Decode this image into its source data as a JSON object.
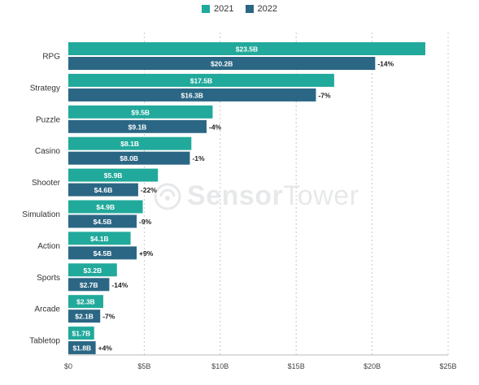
{
  "legend": {
    "items": [
      {
        "label": "2021",
        "color": "#21A99B"
      },
      {
        "label": "2022",
        "color": "#2B6784"
      }
    ]
  },
  "watermark": {
    "brand_bold": "Sensor",
    "brand_light": "Tower"
  },
  "chart_data": {
    "type": "bar",
    "orientation": "horizontal",
    "categories": [
      "RPG",
      "Strategy",
      "Puzzle",
      "Casino",
      "Shooter",
      "Simulation",
      "Action",
      "Sports",
      "Arcade",
      "Tabletop"
    ],
    "series": [
      {
        "name": "2021",
        "color": "#21A99B",
        "values": [
          23.5,
          17.5,
          9.5,
          8.1,
          5.9,
          4.9,
          4.1,
          3.2,
          2.3,
          1.7
        ],
        "labels": [
          "$23.5B",
          "$17.5B",
          "$9.5B",
          "$8.1B",
          "$5.9B",
          "$4.9B",
          "$4.1B",
          "$3.2B",
          "$2.3B",
          "$1.7B"
        ]
      },
      {
        "name": "2022",
        "color": "#2B6784",
        "values": [
          20.2,
          16.3,
          9.1,
          8.0,
          4.6,
          4.5,
          4.5,
          2.7,
          2.1,
          1.8
        ],
        "labels": [
          "$20.2B",
          "$16.3B",
          "$9.1B",
          "$8.0B",
          "$4.6B",
          "$4.5B",
          "$4.5B",
          "$2.7B",
          "$2.1B",
          "$1.8B"
        ]
      }
    ],
    "changes": [
      "-14%",
      "-7%",
      "-4%",
      "-1%",
      "-22%",
      "-9%",
      "+9%",
      "-14%",
      "-7%",
      "+4%"
    ],
    "xlim": [
      0,
      25
    ],
    "xticks": [
      0,
      5,
      10,
      15,
      20,
      25
    ],
    "xtick_labels": [
      "$0",
      "$5B",
      "$10B",
      "$15B",
      "$20B",
      "$25B"
    ],
    "grid": "vertical dotted",
    "legend_position": "top-center"
  }
}
